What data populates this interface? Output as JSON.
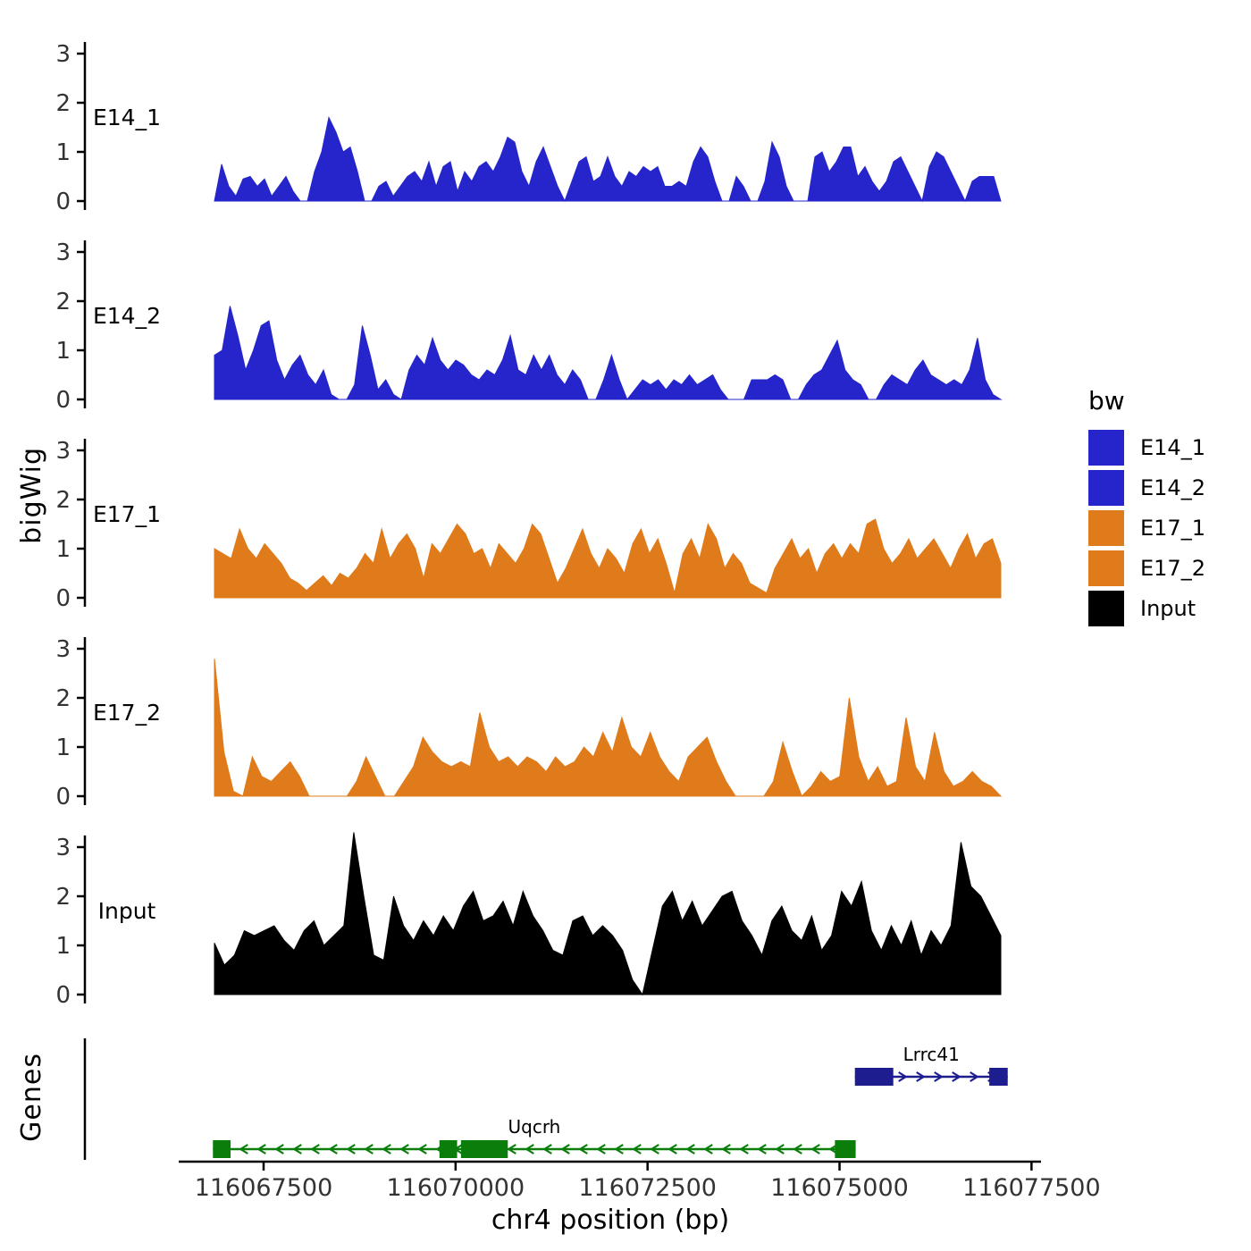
{
  "figure": {
    "y_axis_title": "bigWig",
    "genes_panel_title": "Genes",
    "x_axis_title": "chr4 position (bp)"
  },
  "legend": {
    "title": "bw",
    "entries": [
      {
        "label": "E14_1",
        "color": "#2525CB"
      },
      {
        "label": "E14_2",
        "color": "#2525CB"
      },
      {
        "label": "E17_1",
        "color": "#E07B1B"
      },
      {
        "label": "E17_2",
        "color": "#E07B1B"
      },
      {
        "label": "Input",
        "color": "#000000"
      }
    ]
  },
  "chart_data": {
    "type": "area",
    "title": "",
    "xlabel": "chr4 position (bp)",
    "ylabel": "bigWig",
    "chromosome": "chr4",
    "x_range_bp": [
      116066860,
      116077100
    ],
    "x_ticks": [
      116067500,
      116070000,
      116072500,
      116075000,
      116077500
    ],
    "x_tick_labels": [
      "116067500",
      "116070000",
      "116072500",
      "116075000",
      "116077500"
    ],
    "y_ticks": [
      0,
      1,
      2,
      3
    ],
    "y_tick_labels": [
      "0",
      "1",
      "2",
      "3"
    ],
    "ylim": [
      0,
      3.4
    ],
    "grid": false,
    "legend_position": "right",
    "tracks": [
      {
        "name": "E14_1",
        "color": "#2525CB",
        "max_value": 1.7,
        "values": [
          0,
          0.75,
          0.3,
          0.1,
          0.45,
          0.5,
          0.3,
          0.45,
          0.1,
          0.3,
          0.5,
          0.2,
          0,
          0,
          0.6,
          1.0,
          1.7,
          1.4,
          1.0,
          1.1,
          0.6,
          0,
          0,
          0.3,
          0.4,
          0.1,
          0.3,
          0.5,
          0.6,
          0.4,
          0.8,
          0.3,
          0.7,
          0.8,
          0.2,
          0.6,
          0.4,
          0.7,
          0.8,
          0.6,
          0.9,
          1.3,
          1.2,
          0.6,
          0.3,
          0.8,
          1.1,
          0.7,
          0.3,
          0,
          0.4,
          0.8,
          0.9,
          0.4,
          0.5,
          0.9,
          0.5,
          0.3,
          0.6,
          0.5,
          0.7,
          0.6,
          0.7,
          0.3,
          0.3,
          0.4,
          0.3,
          0.8,
          1.1,
          0.9,
          0.4,
          0,
          0,
          0.5,
          0.3,
          0,
          0,
          0.4,
          1.2,
          0.9,
          0.3,
          0,
          0,
          0,
          0.9,
          1.0,
          0.6,
          0.8,
          1.1,
          1.1,
          0.5,
          0.7,
          0.4,
          0.2,
          0.4,
          0.8,
          0.9,
          0.6,
          0.3,
          0,
          0.7,
          1.0,
          0.9,
          0.6,
          0.3,
          0,
          0.4,
          0.5,
          0.5,
          0.5,
          0
        ]
      },
      {
        "name": "E14_2",
        "color": "#2525CB",
        "max_value": 1.9,
        "values": [
          0.9,
          1.0,
          1.9,
          1.3,
          0.6,
          1.0,
          1.5,
          1.6,
          0.8,
          0.4,
          0.7,
          0.9,
          0.5,
          0.3,
          0.6,
          0.1,
          0,
          0,
          0.3,
          1.5,
          0.9,
          0.2,
          0.4,
          0.1,
          0,
          0.6,
          0.9,
          0.7,
          1.25,
          0.8,
          0.6,
          0.8,
          0.7,
          0.5,
          0.4,
          0.6,
          0.5,
          0.8,
          1.3,
          0.6,
          0.5,
          0.9,
          0.6,
          0.9,
          0.5,
          0.3,
          0.6,
          0.4,
          0,
          0,
          0.4,
          0.9,
          0.4,
          0,
          0.2,
          0.4,
          0.3,
          0.4,
          0.2,
          0.4,
          0.3,
          0.5,
          0.3,
          0.4,
          0.5,
          0.2,
          0,
          0,
          0,
          0.4,
          0.4,
          0.4,
          0.5,
          0.4,
          0,
          0,
          0.3,
          0.5,
          0.6,
          0.9,
          1.2,
          0.6,
          0.4,
          0.3,
          0,
          0,
          0.3,
          0.5,
          0.4,
          0.3,
          0.6,
          0.8,
          0.5,
          0.4,
          0.3,
          0.4,
          0.3,
          0.6,
          1.25,
          0.4,
          0.1,
          0
        ]
      },
      {
        "name": "E17_1",
        "color": "#E07B1B",
        "max_value": 1.6,
        "values": [
          1.0,
          0.9,
          0.8,
          1.4,
          1.0,
          0.8,
          1.1,
          0.9,
          0.7,
          0.4,
          0.3,
          0.15,
          0.3,
          0.45,
          0.25,
          0.5,
          0.4,
          0.6,
          0.9,
          0.7,
          1.4,
          0.8,
          1.1,
          1.3,
          1.0,
          0.4,
          1.1,
          0.9,
          1.2,
          1.5,
          1.3,
          0.9,
          1.0,
          0.6,
          1.1,
          0.9,
          0.7,
          1.0,
          1.5,
          1.3,
          0.8,
          0.3,
          0.6,
          1.0,
          1.4,
          0.9,
          0.6,
          1.0,
          0.8,
          0.5,
          1.1,
          1.4,
          0.9,
          1.2,
          0.7,
          0.1,
          0.9,
          1.2,
          0.8,
          1.5,
          1.2,
          0.6,
          0.9,
          0.7,
          0.3,
          0.2,
          0.1,
          0.6,
          0.9,
          1.2,
          0.8,
          1.0,
          0.5,
          0.9,
          1.1,
          0.8,
          1.1,
          0.9,
          1.5,
          1.6,
          1.0,
          0.7,
          0.9,
          1.2,
          0.8,
          1.0,
          1.2,
          0.9,
          0.6,
          1.0,
          1.3,
          0.8,
          1.1,
          1.2,
          0.7
        ]
      },
      {
        "name": "E17_2",
        "color": "#E07B1B",
        "max_value": 2.8,
        "values": [
          2.8,
          0.9,
          0.1,
          0,
          0.8,
          0.4,
          0.3,
          0.5,
          0.7,
          0.4,
          0,
          0,
          0,
          0,
          0,
          0.3,
          0.8,
          0.4,
          0,
          0,
          0.3,
          0.6,
          1.2,
          0.9,
          0.7,
          0.6,
          0.7,
          0.6,
          1.7,
          1.0,
          0.7,
          0.8,
          0.6,
          0.8,
          0.7,
          0.5,
          0.8,
          0.6,
          0.7,
          1.0,
          0.8,
          1.3,
          0.9,
          1.6,
          1.0,
          0.8,
          1.3,
          0.8,
          0.5,
          0.3,
          0.8,
          1.0,
          1.2,
          0.7,
          0.3,
          0,
          0,
          0,
          0,
          0.3,
          1.1,
          0.5,
          0,
          0.2,
          0.5,
          0.3,
          0.4,
          2.0,
          0.8,
          0.3,
          0.6,
          0.2,
          0.3,
          1.6,
          0.6,
          0.3,
          1.3,
          0.5,
          0.2,
          0.3,
          0.5,
          0.3,
          0.2,
          0
        ]
      },
      {
        "name": "Input",
        "color": "#000000",
        "max_value": 3.3,
        "values": [
          1.05,
          0.6,
          0.8,
          1.3,
          1.2,
          1.3,
          1.4,
          1.1,
          0.9,
          1.3,
          1.5,
          1.0,
          1.2,
          1.4,
          3.3,
          2.0,
          0.8,
          0.7,
          2.0,
          1.4,
          1.1,
          1.5,
          1.2,
          1.6,
          1.3,
          1.8,
          2.1,
          1.5,
          1.6,
          1.9,
          1.4,
          2.1,
          1.6,
          1.3,
          0.9,
          0.8,
          1.5,
          1.6,
          1.2,
          1.4,
          1.2,
          0.9,
          0.3,
          0,
          0.9,
          1.8,
          2.1,
          1.5,
          1.9,
          1.4,
          1.7,
          2.0,
          2.1,
          1.5,
          1.2,
          0.8,
          1.5,
          1.8,
          1.3,
          1.1,
          1.6,
          0.9,
          1.2,
          2.1,
          1.8,
          2.3,
          1.3,
          0.9,
          1.4,
          1.0,
          1.5,
          0.8,
          1.3,
          1.0,
          1.4,
          3.1,
          2.2,
          2.0,
          1.6,
          1.2
        ]
      }
    ],
    "genes": [
      {
        "name": "Lrrc41",
        "strand": "+",
        "color": "#1D1D8F",
        "row": 0,
        "start_bp": 116075200,
        "end_bp": 116077190,
        "exons": [
          [
            116075200,
            116075700
          ],
          [
            116076950,
            116077190
          ]
        ]
      },
      {
        "name": "Uqcrh",
        "strand": "-",
        "color": "#0A7D0A",
        "row": 1,
        "start_bp": 116066840,
        "end_bp": 116075210,
        "exons": [
          [
            116066840,
            116067070
          ],
          [
            116069790,
            116070020
          ],
          [
            116070070,
            116070680
          ],
          [
            116074940,
            116075210
          ]
        ]
      }
    ]
  }
}
